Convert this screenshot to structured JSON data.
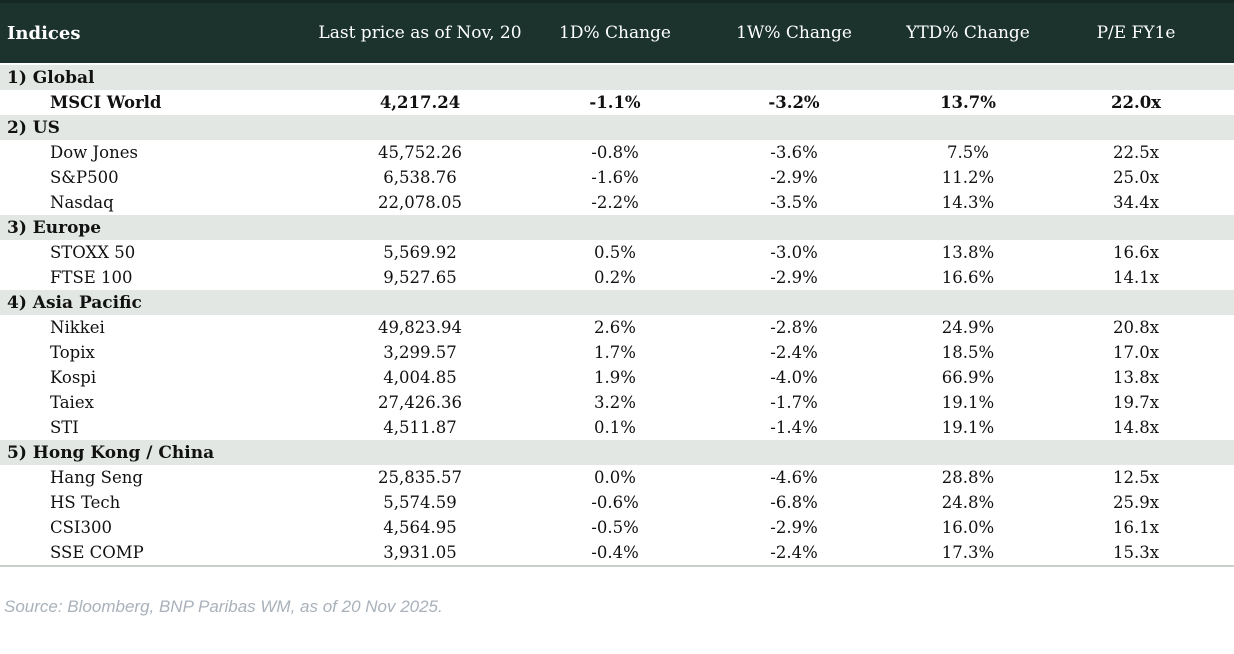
{
  "chart_data": {
    "type": "table",
    "title": "Indices",
    "columns": [
      "Indices",
      "Last price as of Nov, 20",
      "1D% Change",
      "1W% Change",
      "YTD% Change",
      "P/E FY1e"
    ],
    "sections": [
      {
        "label": "1) Global",
        "rows": [
          {
            "name": "MSCI World",
            "last_price": "4,217.24",
            "d1": "-1.1%",
            "w1": "-3.2%",
            "ytd": "13.7%",
            "pe": "22.0x",
            "bold": true
          }
        ]
      },
      {
        "label": "2) US",
        "rows": [
          {
            "name": "Dow Jones",
            "last_price": "45,752.26",
            "d1": "-0.8%",
            "w1": "-3.6%",
            "ytd": "7.5%",
            "pe": "22.5x",
            "bold": false
          },
          {
            "name": "S&P500",
            "last_price": "6,538.76",
            "d1": "-1.6%",
            "w1": "-2.9%",
            "ytd": "11.2%",
            "pe": "25.0x",
            "bold": false
          },
          {
            "name": "Nasdaq",
            "last_price": "22,078.05",
            "d1": "-2.2%",
            "w1": "-3.5%",
            "ytd": "14.3%",
            "pe": "34.4x",
            "bold": false
          }
        ]
      },
      {
        "label": "3) Europe",
        "rows": [
          {
            "name": "STOXX 50",
            "last_price": "5,569.92",
            "d1": "0.5%",
            "w1": "-3.0%",
            "ytd": "13.8%",
            "pe": "16.6x",
            "bold": false
          },
          {
            "name": "FTSE 100",
            "last_price": "9,527.65",
            "d1": "0.2%",
            "w1": "-2.9%",
            "ytd": "16.6%",
            "pe": "14.1x",
            "bold": false
          }
        ]
      },
      {
        "label": "4) Asia Pacific",
        "rows": [
          {
            "name": "Nikkei",
            "last_price": "49,823.94",
            "d1": "2.6%",
            "w1": "-2.8%",
            "ytd": "24.9%",
            "pe": "20.8x",
            "bold": false
          },
          {
            "name": "Topix",
            "last_price": "3,299.57",
            "d1": "1.7%",
            "w1": "-2.4%",
            "ytd": "18.5%",
            "pe": "17.0x",
            "bold": false
          },
          {
            "name": "Kospi",
            "last_price": "4,004.85",
            "d1": "1.9%",
            "w1": "-4.0%",
            "ytd": "66.9%",
            "pe": "13.8x",
            "bold": false
          },
          {
            "name": "Taiex",
            "last_price": "27,426.36",
            "d1": "3.2%",
            "w1": "-1.7%",
            "ytd": "19.1%",
            "pe": "19.7x",
            "bold": false
          },
          {
            "name": "STI",
            "last_price": "4,511.87",
            "d1": "0.1%",
            "w1": "-1.4%",
            "ytd": "19.1%",
            "pe": "14.8x",
            "bold": false
          }
        ]
      },
      {
        "label": "5) Hong Kong / China",
        "rows": [
          {
            "name": "Hang Seng",
            "last_price": "25,835.57",
            "d1": "0.0%",
            "w1": "-4.6%",
            "ytd": "28.8%",
            "pe": "12.5x",
            "bold": false
          },
          {
            "name": "HS Tech",
            "last_price": "5,574.59",
            "d1": "-0.6%",
            "w1": "-6.8%",
            "ytd": "24.8%",
            "pe": "25.9x",
            "bold": false
          },
          {
            "name": "CSI300",
            "last_price": "4,564.95",
            "d1": "-0.5%",
            "w1": "-2.9%",
            "ytd": "16.0%",
            "pe": "16.1x",
            "bold": false
          },
          {
            "name": "SSE COMP",
            "last_price": "3,931.05",
            "d1": "-0.4%",
            "w1": "-2.4%",
            "ytd": "17.3%",
            "pe": "15.3x",
            "bold": false
          }
        ]
      }
    ],
    "source": "Source: Bloomberg, BNP Paribas WM, as of 20 Nov 2025.",
    "colors": {
      "header_bg": "#1b332c",
      "header_text": "#ffffff",
      "section_bg": "#e2e7e3",
      "negative": "#c00c15",
      "positive": "#0f7e1e",
      "body_text": "#111111",
      "source_text": "#a9b1ba",
      "bottom_border": "#c9d0ca"
    },
    "layout": {
      "grid": false,
      "value_alignment": "center",
      "change_color_rule": "negative=red, positive-or-zero=green"
    }
  }
}
